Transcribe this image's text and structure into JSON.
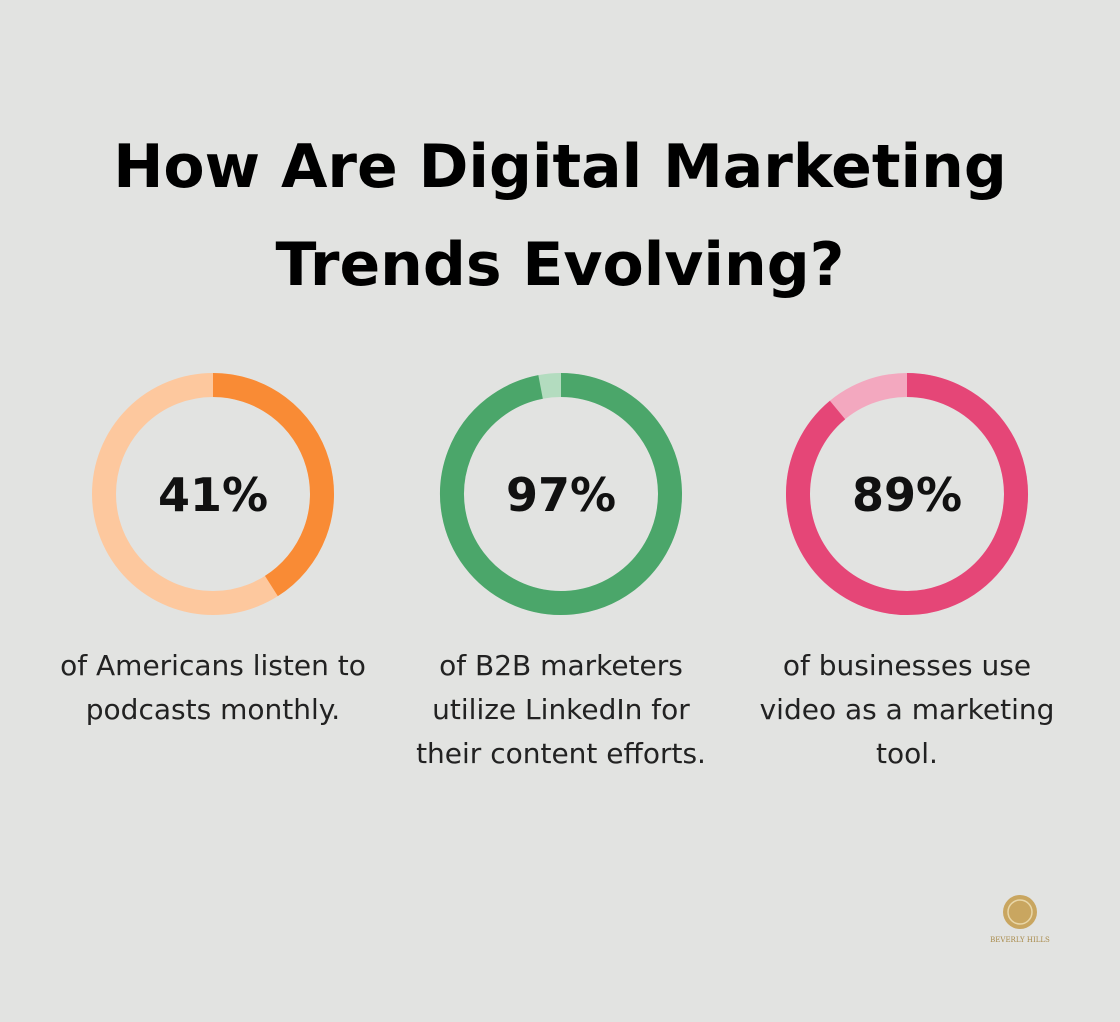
{
  "title": "How Are Digital Marketing Trends Evolving?",
  "logo": "BEVERLY HILLS",
  "chart_data": [
    {
      "type": "donut",
      "values": [
        41
      ],
      "value_labels": [
        "41%"
      ],
      "ylim": [
        0,
        100
      ],
      "color": "#f98b35",
      "track_color": "#fdc89e",
      "caption": "of Americans listen to podcasts monthly."
    },
    {
      "type": "donut",
      "values": [
        97
      ],
      "value_labels": [
        "97%"
      ],
      "ylim": [
        0,
        100
      ],
      "color": "#4ba66a",
      "track_color": "#b3dcbf",
      "caption": "of B2B marketers utilize LinkedIn for their content efforts."
    },
    {
      "type": "donut",
      "values": [
        89
      ],
      "value_labels": [
        "89%"
      ],
      "ylim": [
        0,
        100
      ],
      "color": "#e54677",
      "track_color": "#f3a8bf",
      "caption": "of businesses use video as a marketing tool."
    }
  ]
}
